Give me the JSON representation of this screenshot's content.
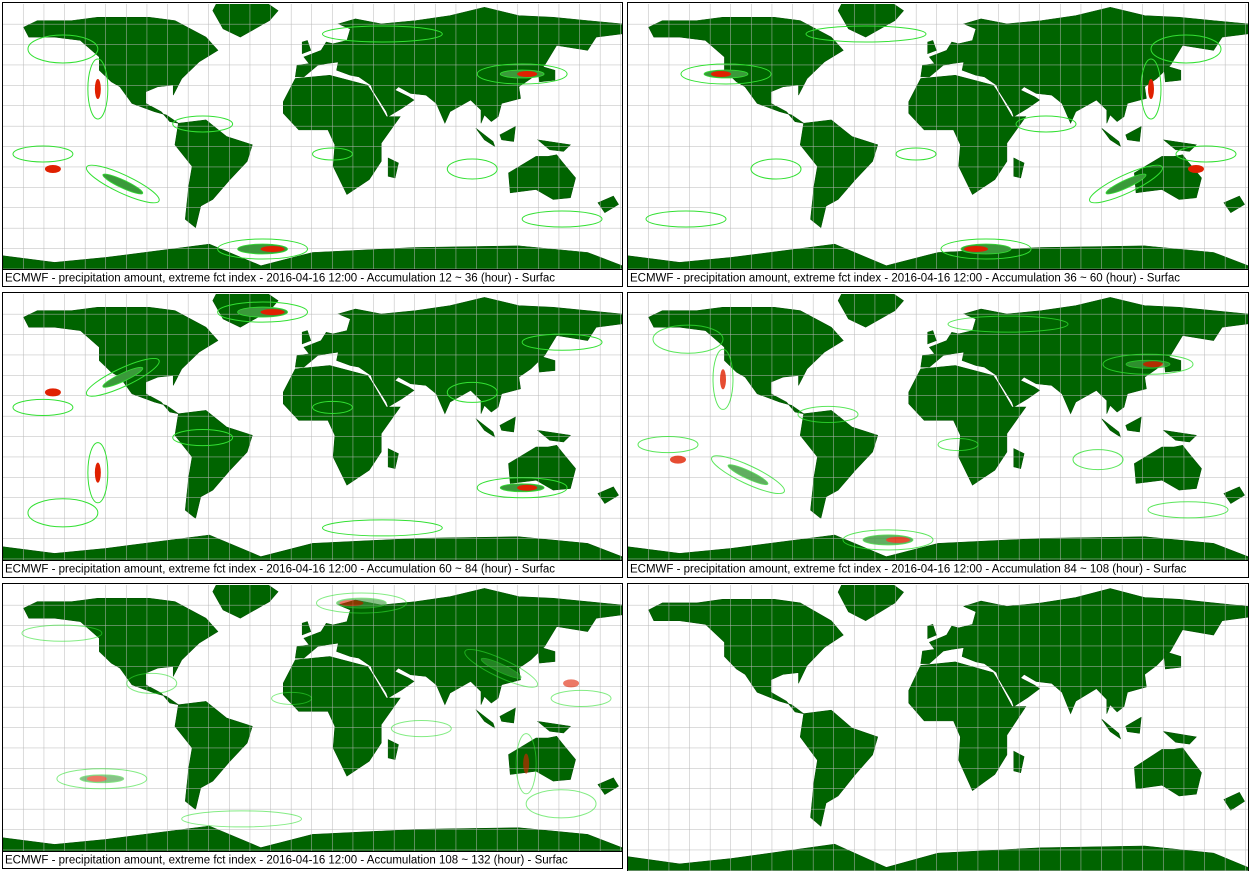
{
  "panels": [
    {
      "caption": "ECMWF - precipitation amount, extreme fct index - 2016-04-16 12:00 - Accumulation  12 ~  36 (hour) - Surfac"
    },
    {
      "caption": "ECMWF - precipitation amount, extreme fct index - 2016-04-16 12:00 - Accumulation  36 ~  60 (hour) - Surfac"
    },
    {
      "caption": "ECMWF - precipitation amount, extreme fct index - 2016-04-16 12:00 - Accumulation  60 ~  84 (hour) - Surfac"
    },
    {
      "caption": "ECMWF - precipitation amount, extreme fct index - 2016-04-16 12:00 - Accumulation  84 ~ 108 (hour) - Surfac"
    },
    {
      "caption": "ECMWF - precipitation amount, extreme fct index - 2016-04-16 12:00 - Accumulation 108 ~ 132 (hour) - Surfac"
    }
  ]
}
